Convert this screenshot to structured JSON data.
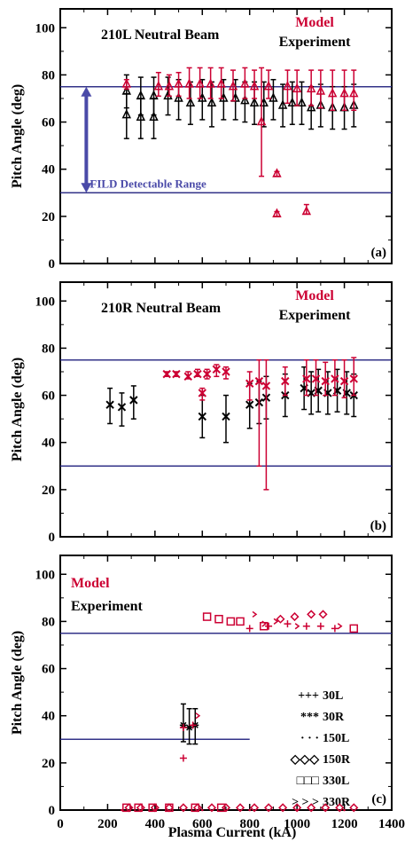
{
  "colors": {
    "model": "#cc0033",
    "experiment": "#000000",
    "reference_line": "#333388",
    "range_arrow": "#4a4aa8"
  },
  "shared": {
    "xlabel": "Plasma Current (kA)",
    "ylabel": "Pitch Angle (deg)",
    "x_ticks": [
      "0",
      "200",
      "400",
      "600",
      "800",
      "1000",
      "1200",
      "1400"
    ],
    "y_ticks": [
      "0",
      "20",
      "40",
      "60",
      "80",
      "100"
    ],
    "xlim": [
      0,
      1400
    ],
    "ylim": [
      0,
      108
    ],
    "legend_model": "Model",
    "legend_experiment": "Experiment"
  },
  "chart_data": [
    {
      "type": "scatter",
      "panel_label": "(a)",
      "title": "210L Neutral Beam",
      "reference_lines": [
        75,
        30
      ],
      "annotation": {
        "text": "FILD Detectable Range",
        "arrow_from": 75,
        "arrow_to": 30,
        "arrow_x": 110
      },
      "series": [
        {
          "name": "Model",
          "marker": "triangle",
          "points": [
            {
              "x": 280,
              "y": 76,
              "lo": 74,
              "hi": 78
            },
            {
              "x": 415,
              "y": 75,
              "lo": 71,
              "hi": 81
            },
            {
              "x": 460,
              "y": 75,
              "lo": 71,
              "hi": 80
            },
            {
              "x": 500,
              "y": 76,
              "lo": 71,
              "hi": 81
            },
            {
              "x": 545,
              "y": 76,
              "lo": 70,
              "hi": 83
            },
            {
              "x": 590,
              "y": 76,
              "lo": 70,
              "hi": 83
            },
            {
              "x": 635,
              "y": 76,
              "lo": 70,
              "hi": 83
            },
            {
              "x": 680,
              "y": 76,
              "lo": 70,
              "hi": 83
            },
            {
              "x": 730,
              "y": 75,
              "lo": 69,
              "hi": 82
            },
            {
              "x": 780,
              "y": 76,
              "lo": 70,
              "hi": 83
            },
            {
              "x": 820,
              "y": 75,
              "lo": 70,
              "hi": 82
            },
            {
              "x": 850,
              "y": 60,
              "lo": 37,
              "hi": 83
            },
            {
              "x": 880,
              "y": 75,
              "lo": 70,
              "hi": 82
            },
            {
              "x": 915,
              "y": 38,
              "lo": 37,
              "hi": 39
            },
            {
              "x": 915,
              "y": 21,
              "lo": 20,
              "hi": 22
            },
            {
              "x": 960,
              "y": 75,
              "lo": 68,
              "hi": 82
            },
            {
              "x": 1000,
              "y": 74,
              "lo": 67,
              "hi": 82
            },
            {
              "x": 1040,
              "y": 22,
              "lo": 21,
              "hi": 25
            },
            {
              "x": 1060,
              "y": 74,
              "lo": 67,
              "hi": 82
            },
            {
              "x": 1100,
              "y": 73,
              "lo": 66,
              "hi": 82
            },
            {
              "x": 1150,
              "y": 72,
              "lo": 65,
              "hi": 82
            },
            {
              "x": 1200,
              "y": 72,
              "lo": 65,
              "hi": 82
            },
            {
              "x": 1240,
              "y": 72,
              "lo": 65,
              "hi": 82
            }
          ]
        },
        {
          "name": "Experiment",
          "marker": "triangle",
          "points": [
            {
              "x": 280,
              "y": 73,
              "lo": 66,
              "hi": 80
            },
            {
              "x": 280,
              "y": 63,
              "lo": 53,
              "hi": 72
            },
            {
              "x": 340,
              "y": 71,
              "lo": 63,
              "hi": 79
            },
            {
              "x": 340,
              "y": 62,
              "lo": 53,
              "hi": 70
            },
            {
              "x": 395,
              "y": 71,
              "lo": 63,
              "hi": 79
            },
            {
              "x": 395,
              "y": 62,
              "lo": 53,
              "hi": 70
            },
            {
              "x": 455,
              "y": 71,
              "lo": 63,
              "hi": 79
            },
            {
              "x": 500,
              "y": 70,
              "lo": 61,
              "hi": 78
            },
            {
              "x": 550,
              "y": 68,
              "lo": 59,
              "hi": 77
            },
            {
              "x": 600,
              "y": 70,
              "lo": 61,
              "hi": 78
            },
            {
              "x": 640,
              "y": 68,
              "lo": 58,
              "hi": 77
            },
            {
              "x": 690,
              "y": 70,
              "lo": 61,
              "hi": 78
            },
            {
              "x": 740,
              "y": 70,
              "lo": 61,
              "hi": 78
            },
            {
              "x": 780,
              "y": 69,
              "lo": 60,
              "hi": 77
            },
            {
              "x": 820,
              "y": 68,
              "lo": 59,
              "hi": 77
            },
            {
              "x": 860,
              "y": 68,
              "lo": 58,
              "hi": 77
            },
            {
              "x": 900,
              "y": 70,
              "lo": 61,
              "hi": 78
            },
            {
              "x": 940,
              "y": 67,
              "lo": 58,
              "hi": 76
            },
            {
              "x": 980,
              "y": 68,
              "lo": 59,
              "hi": 77
            },
            {
              "x": 1020,
              "y": 68,
              "lo": 59,
              "hi": 77
            },
            {
              "x": 1060,
              "y": 66,
              "lo": 57,
              "hi": 75
            },
            {
              "x": 1100,
              "y": 67,
              "lo": 58,
              "hi": 76
            },
            {
              "x": 1150,
              "y": 66,
              "lo": 57,
              "hi": 75
            },
            {
              "x": 1200,
              "y": 66,
              "lo": 57,
              "hi": 75
            },
            {
              "x": 1240,
              "y": 67,
              "lo": 58,
              "hi": 76
            }
          ]
        }
      ]
    },
    {
      "type": "scatter",
      "panel_label": "(b)",
      "title": "210R Neutral Beam",
      "reference_lines": [
        75,
        30
      ],
      "series": [
        {
          "name": "Model",
          "marker": "x",
          "points": [
            {
              "x": 450,
              "y": 69,
              "lo": 68,
              "hi": 70
            },
            {
              "x": 490,
              "y": 69,
              "lo": 68,
              "hi": 70
            },
            {
              "x": 540,
              "y": 68,
              "lo": 67,
              "hi": 70
            },
            {
              "x": 580,
              "y": 69,
              "lo": 68,
              "hi": 71
            },
            {
              "x": 600,
              "y": 61,
              "lo": 58,
              "hi": 63
            },
            {
              "x": 620,
              "y": 69,
              "lo": 67,
              "hi": 71
            },
            {
              "x": 660,
              "y": 71,
              "lo": 68,
              "hi": 73
            },
            {
              "x": 700,
              "y": 70,
              "lo": 67,
              "hi": 72
            },
            {
              "x": 800,
              "y": 65,
              "lo": 58,
              "hi": 70
            },
            {
              "x": 840,
              "y": 66,
              "lo": 30,
              "hi": 75
            },
            {
              "x": 870,
              "y": 64,
              "lo": 20,
              "hi": 75
            },
            {
              "x": 950,
              "y": 66,
              "lo": 60,
              "hi": 72
            },
            {
              "x": 1040,
              "y": 67,
              "lo": 60,
              "hi": 75
            },
            {
              "x": 1080,
              "y": 67,
              "lo": 60,
              "hi": 75
            },
            {
              "x": 1120,
              "y": 66,
              "lo": 60,
              "hi": 74
            },
            {
              "x": 1160,
              "y": 67,
              "lo": 60,
              "hi": 75
            },
            {
              "x": 1200,
              "y": 66,
              "lo": 59,
              "hi": 75
            },
            {
              "x": 1240,
              "y": 67,
              "lo": 60,
              "hi": 76
            }
          ]
        },
        {
          "name": "Experiment",
          "marker": "x",
          "points": [
            {
              "x": 210,
              "y": 56,
              "lo": 48,
              "hi": 63
            },
            {
              "x": 260,
              "y": 55,
              "lo": 47,
              "hi": 61
            },
            {
              "x": 310,
              "y": 58,
              "lo": 50,
              "hi": 64
            },
            {
              "x": 600,
              "y": 51,
              "lo": 42,
              "hi": 60
            },
            {
              "x": 700,
              "y": 51,
              "lo": 40,
              "hi": 60
            },
            {
              "x": 800,
              "y": 56,
              "lo": 46,
              "hi": 65
            },
            {
              "x": 840,
              "y": 57,
              "lo": 48,
              "hi": 66
            },
            {
              "x": 870,
              "y": 59,
              "lo": 50,
              "hi": 68
            },
            {
              "x": 950,
              "y": 60,
              "lo": 51,
              "hi": 69
            },
            {
              "x": 1030,
              "y": 63,
              "lo": 54,
              "hi": 72
            },
            {
              "x": 1060,
              "y": 61,
              "lo": 52,
              "hi": 70
            },
            {
              "x": 1090,
              "y": 62,
              "lo": 53,
              "hi": 71
            },
            {
              "x": 1130,
              "y": 61,
              "lo": 52,
              "hi": 70
            },
            {
              "x": 1170,
              "y": 62,
              "lo": 53,
              "hi": 71
            },
            {
              "x": 1210,
              "y": 61,
              "lo": 52,
              "hi": 70
            },
            {
              "x": 1240,
              "y": 60,
              "lo": 51,
              "hi": 69
            }
          ]
        }
      ]
    },
    {
      "type": "scatter",
      "panel_label": "(c)",
      "title": "",
      "reference_lines": [
        75
      ],
      "reference_lines_partial": [
        {
          "y": 30,
          "x_end": 800
        }
      ],
      "symbol_legend": [
        {
          "glyph": "+++",
          "label": "30L"
        },
        {
          "glyph": "***",
          "label": "30R"
        },
        {
          "glyph": "· · ·",
          "label": "150L"
        },
        {
          "glyph": "◇◇◇",
          "label": "150R"
        },
        {
          "glyph": "□□□",
          "label": "330L"
        },
        {
          "glyph": "> > >",
          "label": "330R"
        }
      ],
      "series": [
        {
          "name": "30L",
          "marker": "plus",
          "group": "Model",
          "points": [
            {
              "x": 520,
              "y": 22
            },
            {
              "x": 520,
              "y": 35
            },
            {
              "x": 560,
              "y": 36
            },
            {
              "x": 800,
              "y": 77
            },
            {
              "x": 880,
              "y": 78
            },
            {
              "x": 960,
              "y": 79
            },
            {
              "x": 1040,
              "y": 78
            },
            {
              "x": 1100,
              "y": 78
            },
            {
              "x": 1160,
              "y": 77
            }
          ]
        },
        {
          "name": "30R",
          "marker": "star",
          "group": "Experiment",
          "points": [
            {
              "x": 520,
              "y": 36,
              "lo": 29,
              "hi": 45
            },
            {
              "x": 545,
              "y": 35,
              "lo": 28,
              "hi": 43
            },
            {
              "x": 570,
              "y": 36,
              "lo": 28,
              "hi": 43
            }
          ]
        },
        {
          "name": "150L",
          "marker": "dot",
          "group": "Model",
          "points": [
            {
              "x": 260,
              "y": 0
            },
            {
              "x": 400,
              "y": 0
            },
            {
              "x": 600,
              "y": 0
            },
            {
              "x": 800,
              "y": 0
            },
            {
              "x": 1000,
              "y": 0
            },
            {
              "x": 1200,
              "y": 0
            }
          ]
        },
        {
          "name": "150R",
          "marker": "diamond",
          "group": "Model",
          "points": [
            {
              "x": 930,
              "y": 81
            },
            {
              "x": 990,
              "y": 82
            },
            {
              "x": 1060,
              "y": 83
            },
            {
              "x": 1110,
              "y": 83
            },
            {
              "x": 290,
              "y": 1
            },
            {
              "x": 340,
              "y": 1
            },
            {
              "x": 400,
              "y": 1
            },
            {
              "x": 460,
              "y": 1
            },
            {
              "x": 520,
              "y": 1
            },
            {
              "x": 580,
              "y": 1
            },
            {
              "x": 640,
              "y": 1
            },
            {
              "x": 700,
              "y": 1
            },
            {
              "x": 760,
              "y": 1
            },
            {
              "x": 820,
              "y": 1
            },
            {
              "x": 880,
              "y": 1
            },
            {
              "x": 940,
              "y": 1
            },
            {
              "x": 1000,
              "y": 1
            },
            {
              "x": 1060,
              "y": 1
            },
            {
              "x": 1120,
              "y": 1
            },
            {
              "x": 1180,
              "y": 1
            },
            {
              "x": 1240,
              "y": 1
            }
          ]
        },
        {
          "name": "330L",
          "marker": "square",
          "group": "Model",
          "points": [
            {
              "x": 620,
              "y": 82
            },
            {
              "x": 670,
              "y": 81
            },
            {
              "x": 720,
              "y": 80
            },
            {
              "x": 760,
              "y": 80
            },
            {
              "x": 860,
              "y": 78
            },
            {
              "x": 1240,
              "y": 77
            },
            {
              "x": 280,
              "y": 1
            },
            {
              "x": 330,
              "y": 1
            },
            {
              "x": 390,
              "y": 1
            },
            {
              "x": 460,
              "y": 1
            },
            {
              "x": 570,
              "y": 1
            },
            {
              "x": 680,
              "y": 1
            }
          ]
        },
        {
          "name": "330R",
          "marker": "chevron",
          "group": "Model",
          "points": [
            {
              "x": 820,
              "y": 83
            },
            {
              "x": 860,
              "y": 79
            },
            {
              "x": 910,
              "y": 80
            },
            {
              "x": 1000,
              "y": 78
            },
            {
              "x": 1180,
              "y": 78
            },
            {
              "x": 580,
              "y": 40
            }
          ]
        }
      ]
    }
  ]
}
